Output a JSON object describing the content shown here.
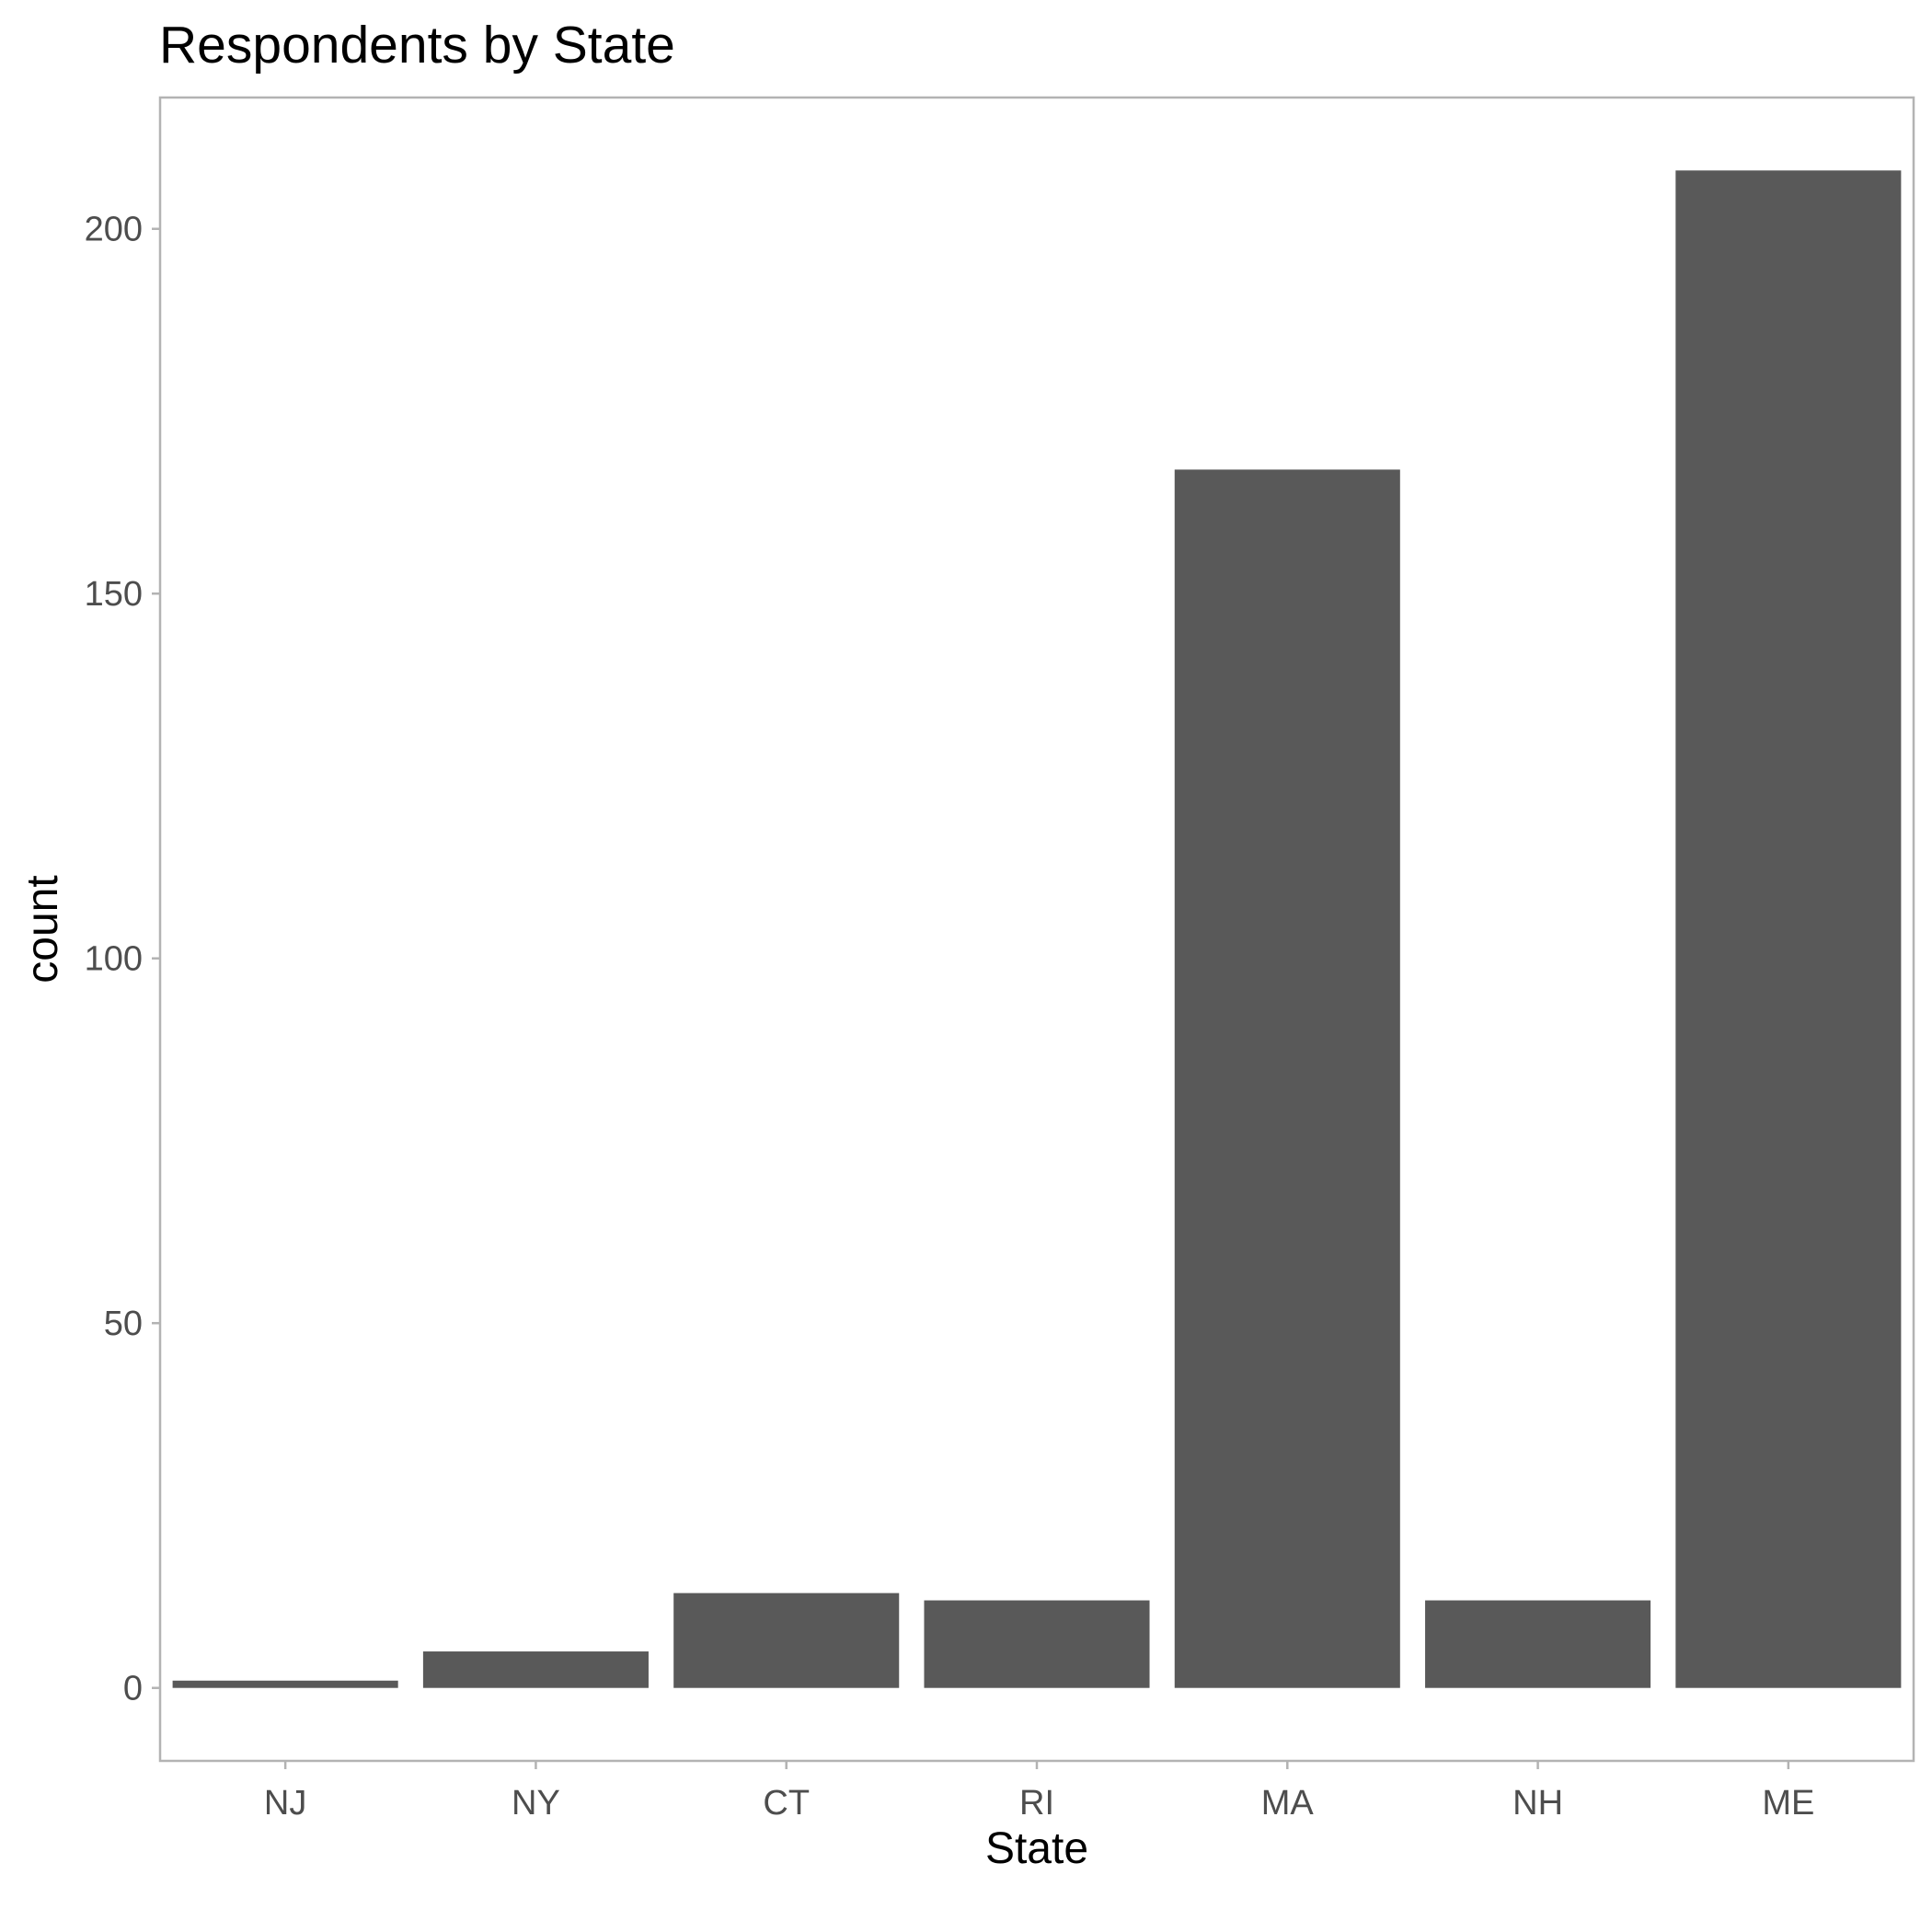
{
  "chart_data": {
    "type": "bar",
    "title": "Respondents by State",
    "xlabel": "State",
    "ylabel": "count",
    "categories": [
      "NJ",
      "NY",
      "CT",
      "RI",
      "MA",
      "NH",
      "ME"
    ],
    "values": [
      1,
      5,
      13,
      12,
      167,
      12,
      208
    ],
    "ylim": [
      -10,
      218
    ],
    "yticks": [
      0,
      50,
      100,
      150,
      200
    ],
    "grid": false,
    "legend": "none",
    "bar_color": "#595959",
    "panel_border_color": "#b3b3b3"
  }
}
